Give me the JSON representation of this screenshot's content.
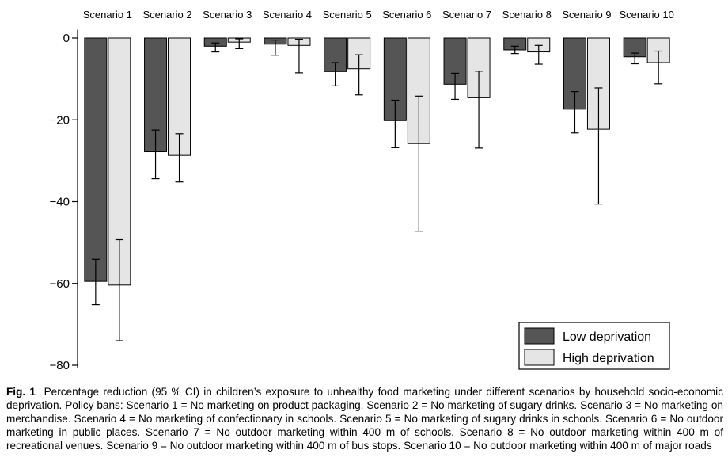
{
  "chart_data": {
    "type": "bar",
    "categories": [
      "Scenario 1",
      "Scenario 2",
      "Scenario 3",
      "Scenario 4",
      "Scenario 5",
      "Scenario 6",
      "Scenario 7",
      "Scenario 8",
      "Scenario 9",
      "Scenario 10"
    ],
    "series": [
      {
        "name": "Low deprivation",
        "color": "#555555",
        "values": [
          -59.5,
          -27.8,
          -2.0,
          -1.5,
          -8.2,
          -20.2,
          -11.3,
          -2.9,
          -17.4,
          -4.6
        ],
        "ci_low": [
          -65.2,
          -34.4,
          -3.4,
          -4.2,
          -11.7,
          -26.8,
          -15.0,
          -3.8,
          -23.2,
          -6.3
        ],
        "ci_high": [
          -54.1,
          -22.5,
          -1.2,
          -0.5,
          -6.0,
          -15.2,
          -8.6,
          -2.0,
          -13.1,
          -3.7
        ]
      },
      {
        "name": "High deprivation",
        "color": "#e5e5e5",
        "values": [
          -60.4,
          -28.7,
          -1.0,
          -1.8,
          -7.5,
          -25.8,
          -14.6,
          -3.4,
          -22.3,
          -6.0
        ],
        "ci_low": [
          -74.0,
          -35.2,
          -2.6,
          -8.5,
          -13.9,
          -47.2,
          -26.9,
          -6.4,
          -40.6,
          -11.2
        ],
        "ci_high": [
          -49.3,
          -23.4,
          -0.2,
          -0.3,
          -4.1,
          -14.2,
          -8.1,
          -1.8,
          -12.2,
          -3.2
        ]
      }
    ],
    "yticks": [
      0,
      -20,
      -40,
      -60,
      -80
    ],
    "ylim": [
      -82,
      2
    ],
    "grid": false,
    "legend": "bottom-right"
  },
  "caption": {
    "label": "Fig. 1",
    "text": "Percentage reduction (95 % CI) in children’s exposure to unhealthy food marketing under different scenarios by household socio-economic deprivation. Policy bans: Scenario 1 = No marketing on product packaging. Scenario 2 = No marketing of sugary drinks. Scenario 3 = No marketing on merchandise. Scenario 4 = No marketing of confectionary in schools. Scenario 5 = No marketing of sugary drinks in schools. Scenario 6 = No outdoor marketing in public places. Scenario 7 = No outdoor marketing within 400 m of schools. Scenario 8 = No outdoor marketing within 400 m of recreational venues. Scenario 9 = No outdoor marketing within 400 m of bus stops. Scenario 10 = No outdoor marketing within 400 m of major roads"
  }
}
